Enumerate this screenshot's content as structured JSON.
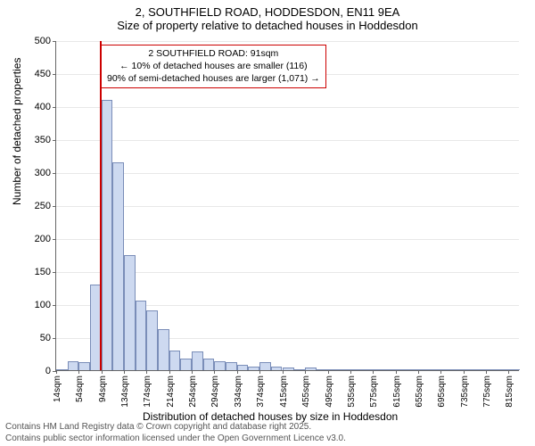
{
  "header": {
    "title_line1": "2, SOUTHFIELD ROAD, HODDESDON, EN11 9EA",
    "title_line2": "Size of property relative to detached houses in Hoddesdon"
  },
  "chart": {
    "type": "histogram",
    "ylabel": "Number of detached properties",
    "xlabel": "Distribution of detached houses by size in Hoddesdon",
    "ylim": [
      0,
      500
    ],
    "yticks": [
      0,
      50,
      100,
      150,
      200,
      250,
      300,
      350,
      400,
      450,
      500
    ],
    "xtick_labels": [
      "14sqm",
      "54sqm",
      "94sqm",
      "134sqm",
      "174sqm",
      "214sqm",
      "254sqm",
      "294sqm",
      "334sqm",
      "374sqm",
      "415sqm",
      "455sqm",
      "495sqm",
      "535sqm",
      "575sqm",
      "615sqm",
      "655sqm",
      "695sqm",
      "735sqm",
      "775sqm",
      "815sqm"
    ],
    "bars": [
      {
        "x_sqm": 14,
        "value": 0
      },
      {
        "x_sqm": 34,
        "value": 13
      },
      {
        "x_sqm": 54,
        "value": 12
      },
      {
        "x_sqm": 74,
        "value": 130
      },
      {
        "x_sqm": 94,
        "value": 410
      },
      {
        "x_sqm": 114,
        "value": 315
      },
      {
        "x_sqm": 134,
        "value": 175
      },
      {
        "x_sqm": 154,
        "value": 105
      },
      {
        "x_sqm": 174,
        "value": 90
      },
      {
        "x_sqm": 194,
        "value": 62
      },
      {
        "x_sqm": 214,
        "value": 30
      },
      {
        "x_sqm": 234,
        "value": 18
      },
      {
        "x_sqm": 254,
        "value": 28
      },
      {
        "x_sqm": 274,
        "value": 18
      },
      {
        "x_sqm": 294,
        "value": 14
      },
      {
        "x_sqm": 314,
        "value": 12
      },
      {
        "x_sqm": 334,
        "value": 8
      },
      {
        "x_sqm": 354,
        "value": 5
      },
      {
        "x_sqm": 374,
        "value": 12
      },
      {
        "x_sqm": 394,
        "value": 5
      },
      {
        "x_sqm": 415,
        "value": 4
      },
      {
        "x_sqm": 435,
        "value": 2
      },
      {
        "x_sqm": 455,
        "value": 4
      },
      {
        "x_sqm": 475,
        "value": 0
      },
      {
        "x_sqm": 495,
        "value": 2
      },
      {
        "x_sqm": 515,
        "value": 0
      },
      {
        "x_sqm": 535,
        "value": 2
      },
      {
        "x_sqm": 555,
        "value": 0
      },
      {
        "x_sqm": 575,
        "value": 0
      },
      {
        "x_sqm": 595,
        "value": 0
      },
      {
        "x_sqm": 615,
        "value": 0
      },
      {
        "x_sqm": 635,
        "value": 0
      },
      {
        "x_sqm": 655,
        "value": 0
      },
      {
        "x_sqm": 675,
        "value": 0
      },
      {
        "x_sqm": 695,
        "value": 0
      },
      {
        "x_sqm": 715,
        "value": 0
      },
      {
        "x_sqm": 735,
        "value": 0
      },
      {
        "x_sqm": 755,
        "value": 0
      },
      {
        "x_sqm": 775,
        "value": 2
      },
      {
        "x_sqm": 795,
        "value": 0
      },
      {
        "x_sqm": 815,
        "value": 0
      }
    ],
    "bar_color": "#cdd9f0",
    "bar_border_color": "#7a8db8",
    "x_min_sqm": 14,
    "x_max_sqm": 835,
    "bar_width_sqm": 20,
    "marker": {
      "x_sqm": 91,
      "color": "#cc0000"
    },
    "annotation": {
      "line1": "2 SOUTHFIELD ROAD: 91sqm",
      "line2": "← 10% of detached houses are smaller (116)",
      "line3": "90% of semi-detached houses are larger (1,071) →",
      "border_color": "#cc0000"
    },
    "background_color": "#ffffff",
    "axis_color": "#666666",
    "tick_fontsize": 11,
    "label_fontsize": 12,
    "title_fontsize": 13
  },
  "footer": {
    "line1": "Contains HM Land Registry data © Crown copyright and database right 2025.",
    "line2": "Contains public sector information licensed under the Open Government Licence v3.0."
  }
}
